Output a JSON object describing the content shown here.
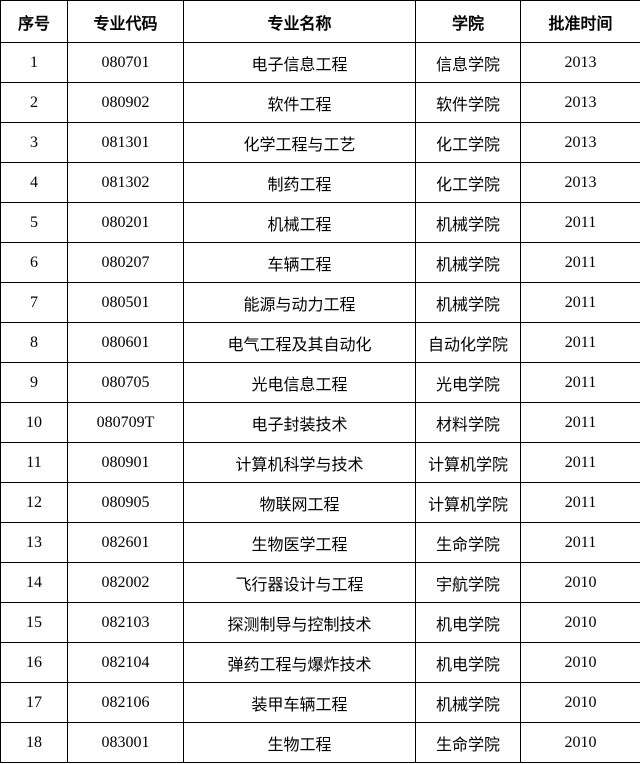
{
  "table": {
    "header": [
      "序号",
      "专业代码",
      "专业名称",
      "学院",
      "批准时间"
    ],
    "rows": [
      [
        1,
        "080701",
        "电子信息工程",
        "信息学院",
        2013
      ],
      [
        2,
        "080902",
        "软件工程",
        "软件学院",
        2013
      ],
      [
        3,
        "081301",
        "化学工程与工艺",
        "化工学院",
        2013
      ],
      [
        4,
        "081302",
        "制药工程",
        "化工学院",
        2013
      ],
      [
        5,
        "080201",
        "机械工程",
        "机械学院",
        2011
      ],
      [
        6,
        "080207",
        "车辆工程",
        "机械学院",
        2011
      ],
      [
        7,
        "080501",
        "能源与动力工程",
        "机械学院",
        2011
      ],
      [
        8,
        "080601",
        "电气工程及其自动化",
        "自动化学院",
        2011
      ],
      [
        9,
        "080705",
        "光电信息工程",
        "光电学院",
        2011
      ],
      [
        10,
        "080709T",
        "电子封装技术",
        "材料学院",
        2011
      ],
      [
        11,
        "080901",
        "计算机科学与技术",
        "计算机学院",
        2011
      ],
      [
        12,
        "080905",
        "物联网工程",
        "计算机学院",
        2011
      ],
      [
        13,
        "082601",
        "生物医学工程",
        "生命学院",
        2011
      ],
      [
        14,
        "082002",
        "飞行器设计与工程",
        "宇航学院",
        2010
      ],
      [
        15,
        "082103",
        "探测制导与控制技术",
        "机电学院",
        2010
      ],
      [
        16,
        "082104",
        "弹药工程与爆炸技术",
        "机电学院",
        2010
      ],
      [
        17,
        "082106",
        "装甲车辆工程",
        "机械学院",
        2010
      ],
      [
        18,
        "083001",
        "生物工程",
        "生命学院",
        2010
      ]
    ]
  }
}
